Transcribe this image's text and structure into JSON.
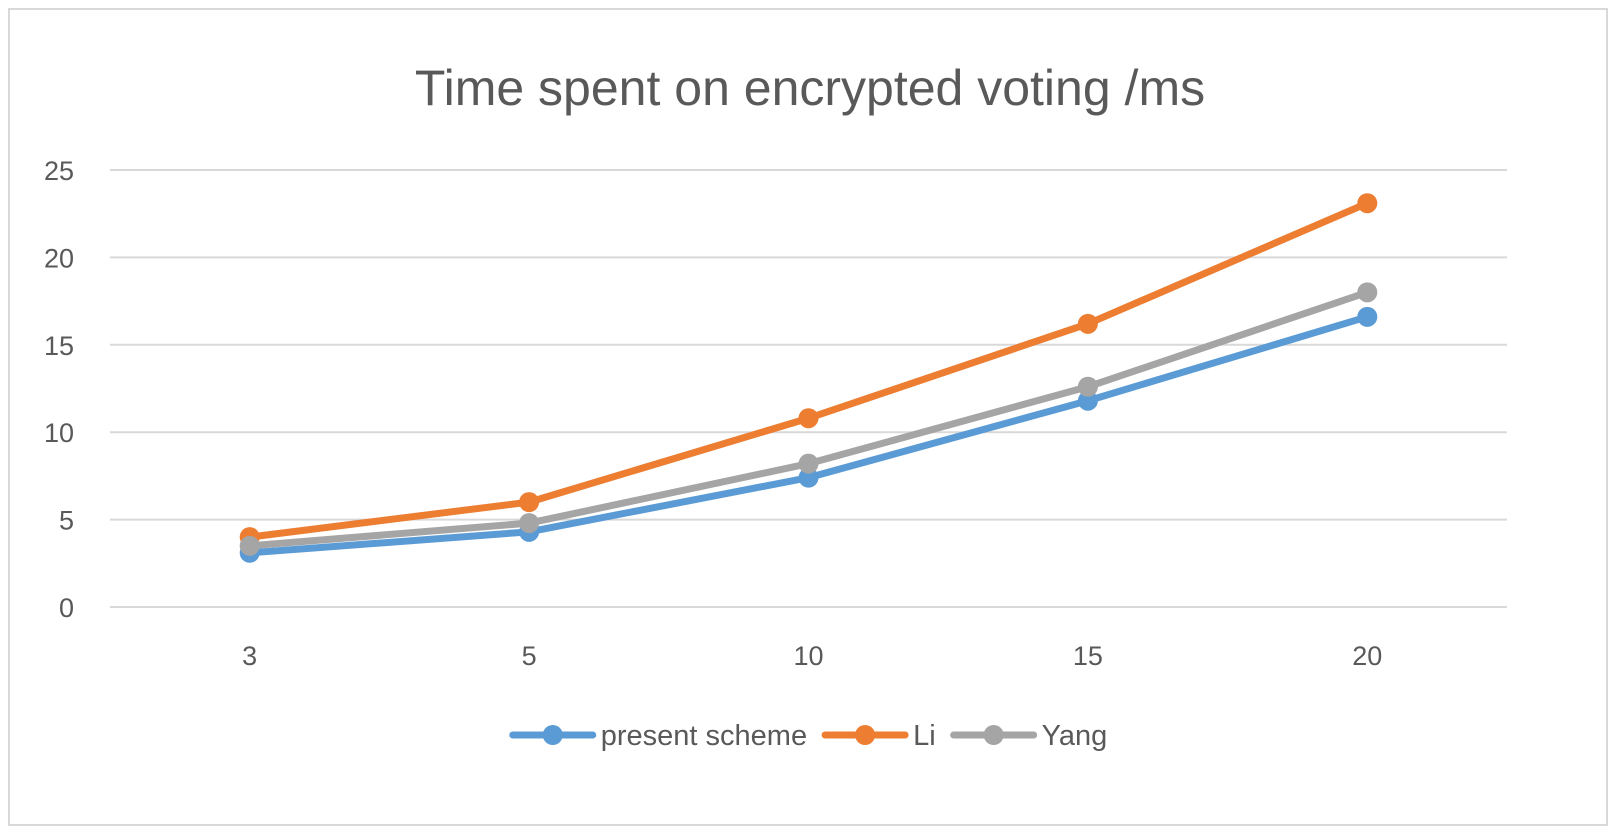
{
  "chart_data": {
    "type": "line",
    "title": "Time spent on encrypted voting /ms",
    "xlabel": "",
    "ylabel": "",
    "categories": [
      "3",
      "5",
      "10",
      "15",
      "20"
    ],
    "ylim": [
      0,
      25
    ],
    "yticks": [
      0,
      5,
      10,
      15,
      20,
      25
    ],
    "grid": true,
    "legend_position": "bottom",
    "series": [
      {
        "name": "present scheme",
        "color": "#5b9bd5",
        "values": [
          3.1,
          4.3,
          7.4,
          11.8,
          16.6
        ]
      },
      {
        "name": "Li",
        "color": "#ed7d31",
        "values": [
          4.0,
          6.0,
          10.8,
          16.2,
          23.1
        ]
      },
      {
        "name": "Yang",
        "color": "#a5a5a5",
        "values": [
          3.5,
          4.8,
          8.2,
          12.6,
          18.0
        ]
      }
    ]
  }
}
